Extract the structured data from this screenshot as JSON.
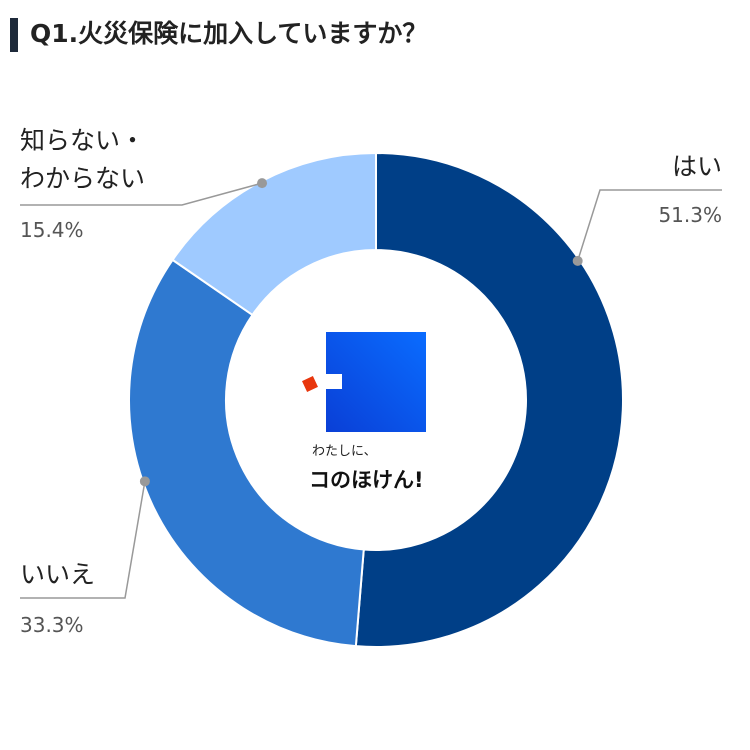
{
  "chart_data": {
    "type": "donut",
    "title": "Q1.火災保険に加入していますか？",
    "categories": [
      "はい",
      "いいえ",
      "知らない・\nわからない"
    ],
    "values": [
      51.3,
      33.3,
      15.4
    ],
    "value_labels": [
      "51.3%",
      "33.3%",
      "15.4%"
    ],
    "colors": [
      "#003f87",
      "#2f79d0",
      "#9fcaff"
    ],
    "center_text": [
      "わたしに、",
      "コのほけん!"
    ]
  }
}
